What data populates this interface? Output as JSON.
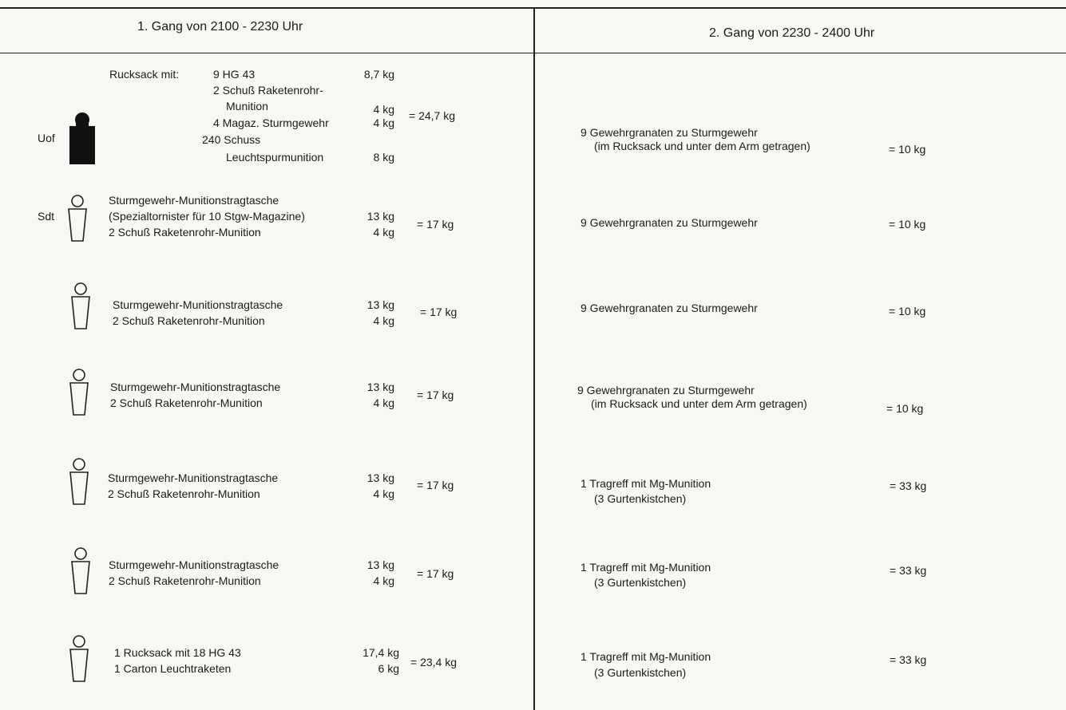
{
  "header": {
    "col1": "1. Gang von 2100 - 2230 Uhr",
    "col2": "2. Gang von 2230 - 2400 Uhr"
  },
  "icons": {
    "uof": "soldier-figure-filled-icon",
    "sdt": "soldier-figure-outline-icon"
  },
  "rows": [
    {
      "rank": "Uof",
      "left": {
        "label": "Rucksack mit:",
        "items": [
          {
            "name": "9 HG 43",
            "weight": "8,7 kg"
          },
          {
            "name": "2 Schuß Raketenrohr-",
            "weight": ""
          },
          {
            "name": "Munition",
            "weight": "4 kg"
          },
          {
            "name": "4 Magaz. Sturmgewehr",
            "weight": "4 kg"
          },
          {
            "name": "240 Schuss",
            "weight": ""
          },
          {
            "name": "Leuchtspurmunition",
            "weight": "8 kg"
          }
        ],
        "total": "= 24,7 kg"
      },
      "right": {
        "lines": [
          "9 Gewehrgranaten zu Sturmgewehr",
          "(im Rucksack und unter dem Arm getragen)"
        ],
        "total": "= 10 kg"
      }
    },
    {
      "rank": "Sdt",
      "left": {
        "lines": [
          {
            "text": "Sturmgewehr-Munitionstragtasche",
            "weight": ""
          },
          {
            "text": "(Spezialtornister für 10 Stgw-Magazine)",
            "weight": "13 kg"
          },
          {
            "text": "2 Schuß Raketenrohr-Munition",
            "weight": "4 kg"
          }
        ],
        "total": "= 17 kg"
      },
      "right": {
        "lines": [
          "9 Gewehrgranaten zu Sturmgewehr"
        ],
        "total": "= 10 kg"
      }
    },
    {
      "rank": "",
      "left": {
        "lines": [
          {
            "text": "Sturmgewehr-Munitionstragtasche",
            "weight": "13 kg"
          },
          {
            "text": "2 Schuß Raketenrohr-Munition",
            "weight": "4 kg"
          }
        ],
        "total": "= 17 kg"
      },
      "right": {
        "lines": [
          "9 Gewehrgranaten zu Sturmgewehr"
        ],
        "total": "= 10 kg"
      }
    },
    {
      "rank": "",
      "left": {
        "lines": [
          {
            "text": "Sturmgewehr-Munitionstragtasche",
            "weight": "13 kg"
          },
          {
            "text": "2 Schuß Raketenrohr-Munition",
            "weight": "4 kg"
          }
        ],
        "total": "= 17 kg"
      },
      "right": {
        "lines": [
          "9 Gewehrgranaten zu Sturmgewehr",
          "(im Rucksack und unter dem Arm getragen)"
        ],
        "total": "= 10 kg"
      }
    },
    {
      "rank": "",
      "left": {
        "lines": [
          {
            "text": "Sturmgewehr-Munitionstragtasche",
            "weight": "13 kg"
          },
          {
            "text": "2 Schuß Raketenrohr-Munition",
            "weight": "4 kg"
          }
        ],
        "total": "= 17 kg"
      },
      "right": {
        "lines": [
          "1 Tragreff mit Mg-Munition",
          "(3 Gurtenkistchen)"
        ],
        "total": "= 33 kg"
      }
    },
    {
      "rank": "",
      "left": {
        "lines": [
          {
            "text": "Sturmgewehr-Munitionstragtasche",
            "weight": "13 kg"
          },
          {
            "text": "2 Schuß Raketenrohr-Munition",
            "weight": "4 kg"
          }
        ],
        "total": "= 17 kg"
      },
      "right": {
        "lines": [
          "1 Tragreff mit Mg-Munition",
          "(3 Gurtenkistchen)"
        ],
        "total": "= 33 kg"
      }
    },
    {
      "rank": "",
      "left": {
        "lines": [
          {
            "text": "1 Rucksack mit 18 HG 43",
            "weight": "17,4 kg"
          },
          {
            "text": "1 Carton Leuchtraketen",
            "weight": "6 kg"
          }
        ],
        "total": "= 23,4 kg"
      },
      "right": {
        "lines": [
          "1 Tragreff mit Mg-Munition",
          "(3 Gurtenkistchen)"
        ],
        "total": "= 33 kg"
      }
    }
  ]
}
